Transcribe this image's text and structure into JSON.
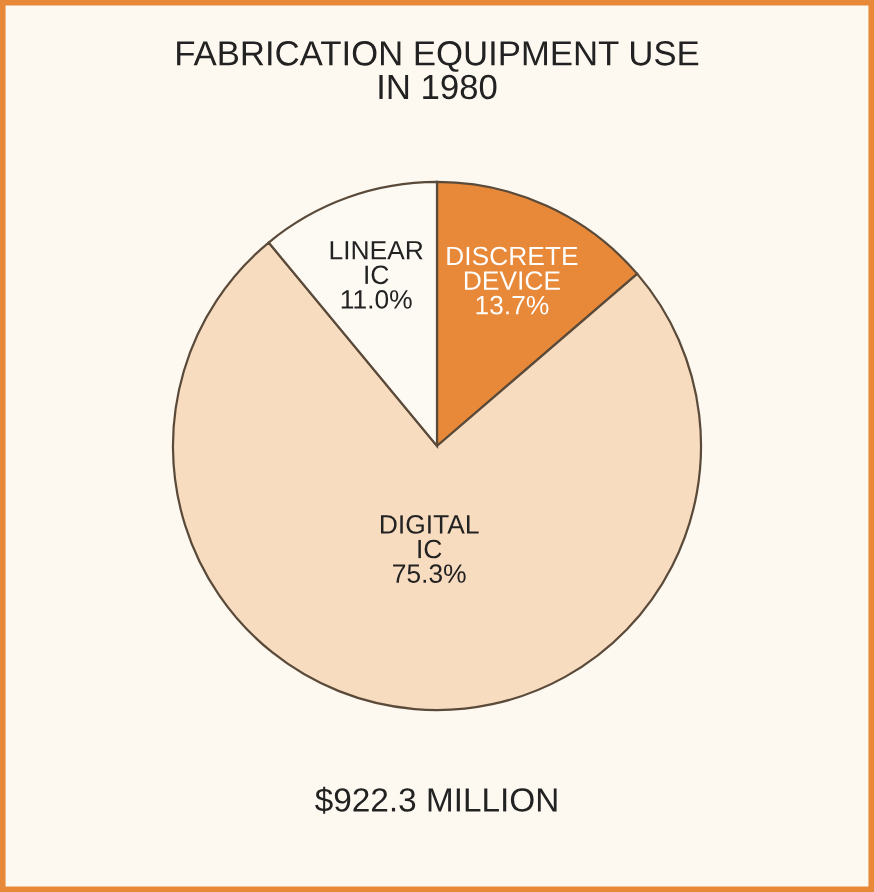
{
  "chart_data": {
    "type": "pie",
    "title": "FABRICATION EQUIPMENT USE\nIN 1980",
    "categories": [
      "DISCRETE\nDEVICE",
      "DIGITAL\nIC",
      "LINEAR\nIC"
    ],
    "values": [
      13.7,
      75.3,
      11.0
    ],
    "value_labels": [
      "13.7%",
      "75.3%",
      "11.0%"
    ],
    "colors": [
      "#e8893a",
      "#f8dcc0",
      "#fdfaf4"
    ],
    "annotations": [
      "$922.3 MILLION"
    ]
  }
}
